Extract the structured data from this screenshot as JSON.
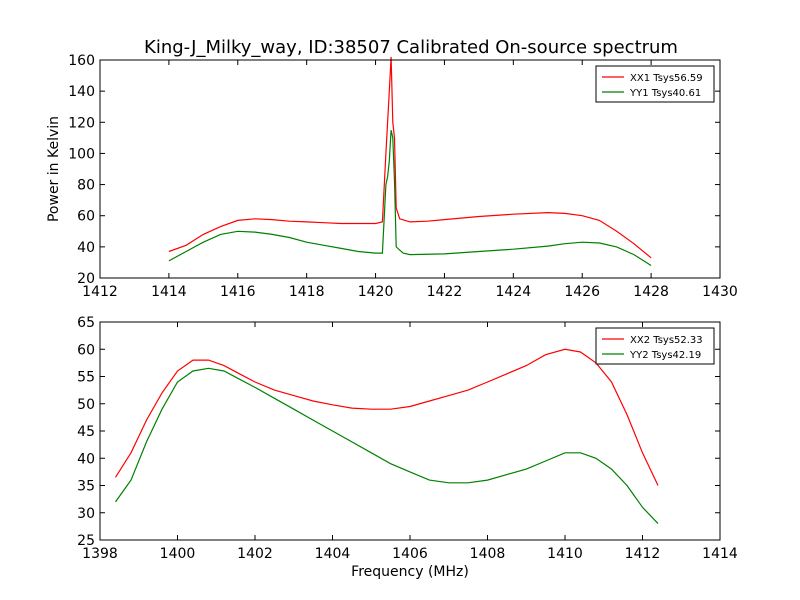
{
  "title": "King-J_Milky_way, ID:38507 Calibrated On-source spectrum",
  "chart_data": [
    {
      "type": "line",
      "ylabel": "Power in Kelvin",
      "xlabel": "",
      "xlim": [
        1412,
        1430
      ],
      "ylim": [
        20,
        160
      ],
      "xticks": [
        1412,
        1414,
        1416,
        1418,
        1420,
        1422,
        1424,
        1426,
        1428,
        1430
      ],
      "yticks": [
        20,
        40,
        60,
        80,
        100,
        120,
        140,
        160
      ],
      "legend_position": "top-right",
      "series": [
        {
          "name": "XX1 Tsys56.59",
          "color": "#ff0000",
          "points": [
            [
              1414,
              37
            ],
            [
              1414.5,
              41
            ],
            [
              1415,
              48
            ],
            [
              1415.5,
              53
            ],
            [
              1416,
              57
            ],
            [
              1416.5,
              58
            ],
            [
              1417,
              57.5
            ],
            [
              1417.5,
              56.5
            ],
            [
              1418,
              56
            ],
            [
              1418.5,
              55.5
            ],
            [
              1419,
              55
            ],
            [
              1419.5,
              55
            ],
            [
              1420,
              55
            ],
            [
              1420.2,
              56
            ],
            [
              1420.3,
              100
            ],
            [
              1420.35,
              120
            ],
            [
              1420.4,
              140
            ],
            [
              1420.45,
              162
            ],
            [
              1420.5,
              120
            ],
            [
              1420.55,
              110
            ],
            [
              1420.6,
              65
            ],
            [
              1420.7,
              58
            ],
            [
              1421,
              56
            ],
            [
              1421.5,
              56.5
            ],
            [
              1422,
              57.5
            ],
            [
              1423,
              59.5
            ],
            [
              1424,
              61
            ],
            [
              1425,
              62
            ],
            [
              1425.5,
              61.5
            ],
            [
              1426,
              60
            ],
            [
              1426.5,
              57
            ],
            [
              1427,
              50
            ],
            [
              1427.5,
              42
            ],
            [
              1428,
              33
            ]
          ]
        },
        {
          "name": "YY1 Tsys40.61",
          "color": "#008000",
          "points": [
            [
              1414,
              31
            ],
            [
              1414.5,
              37
            ],
            [
              1415,
              43
            ],
            [
              1415.5,
              48
            ],
            [
              1416,
              50
            ],
            [
              1416.5,
              49.5
            ],
            [
              1417,
              48
            ],
            [
              1417.5,
              46
            ],
            [
              1418,
              43
            ],
            [
              1418.5,
              41
            ],
            [
              1419,
              39
            ],
            [
              1419.5,
              37
            ],
            [
              1420,
              36
            ],
            [
              1420.2,
              36
            ],
            [
              1420.3,
              80
            ],
            [
              1420.35,
              85
            ],
            [
              1420.4,
              95
            ],
            [
              1420.45,
              115
            ],
            [
              1420.5,
              110
            ],
            [
              1420.55,
              82
            ],
            [
              1420.6,
              40
            ],
            [
              1420.8,
              36
            ],
            [
              1421,
              35
            ],
            [
              1422,
              35.5
            ],
            [
              1423,
              37
            ],
            [
              1424,
              38.5
            ],
            [
              1425,
              40.5
            ],
            [
              1425.5,
              42
            ],
            [
              1426,
              43
            ],
            [
              1426.5,
              42.5
            ],
            [
              1427,
              40
            ],
            [
              1427.5,
              35
            ],
            [
              1428,
              28
            ]
          ]
        }
      ]
    },
    {
      "type": "line",
      "ylabel": "",
      "xlabel": "Frequency (MHz)",
      "xlim": [
        1398,
        1414
      ],
      "ylim": [
        25,
        65
      ],
      "xticks": [
        1398,
        1400,
        1402,
        1404,
        1406,
        1408,
        1410,
        1412,
        1414
      ],
      "yticks": [
        25,
        30,
        35,
        40,
        45,
        50,
        55,
        60,
        65
      ],
      "legend_position": "top-right",
      "series": [
        {
          "name": "XX2 Tsys52.33",
          "color": "#ff0000",
          "points": [
            [
              1398.4,
              36.5
            ],
            [
              1398.8,
              41
            ],
            [
              1399.2,
              47
            ],
            [
              1399.6,
              52
            ],
            [
              1400,
              56
            ],
            [
              1400.4,
              58
            ],
            [
              1400.8,
              58
            ],
            [
              1401.2,
              57
            ],
            [
              1401.6,
              55.5
            ],
            [
              1402,
              54
            ],
            [
              1402.5,
              52.5
            ],
            [
              1403,
              51.5
            ],
            [
              1403.5,
              50.5
            ],
            [
              1404,
              49.8
            ],
            [
              1404.5,
              49.2
            ],
            [
              1405,
              49
            ],
            [
              1405.5,
              49
            ],
            [
              1406,
              49.5
            ],
            [
              1406.5,
              50.5
            ],
            [
              1407,
              51.5
            ],
            [
              1407.5,
              52.5
            ],
            [
              1408,
              54
            ],
            [
              1408.5,
              55.5
            ],
            [
              1409,
              57
            ],
            [
              1409.5,
              59
            ],
            [
              1410,
              60
            ],
            [
              1410.4,
              59.5
            ],
            [
              1410.8,
              57.5
            ],
            [
              1411.2,
              54
            ],
            [
              1411.6,
              48
            ],
            [
              1412,
              41
            ],
            [
              1412.4,
              35
            ]
          ]
        },
        {
          "name": "YY2 Tsys42.19",
          "color": "#008000",
          "points": [
            [
              1398.4,
              32
            ],
            [
              1398.8,
              36
            ],
            [
              1399.2,
              43
            ],
            [
              1399.6,
              49
            ],
            [
              1400,
              54
            ],
            [
              1400.4,
              56
            ],
            [
              1400.8,
              56.5
            ],
            [
              1401.2,
              56
            ],
            [
              1401.6,
              54.5
            ],
            [
              1402,
              53
            ],
            [
              1402.5,
              51
            ],
            [
              1403,
              49
            ],
            [
              1403.5,
              47
            ],
            [
              1404,
              45
            ],
            [
              1404.5,
              43
            ],
            [
              1405,
              41
            ],
            [
              1405.5,
              39
            ],
            [
              1406,
              37.5
            ],
            [
              1406.5,
              36
            ],
            [
              1407,
              35.5
            ],
            [
              1407.5,
              35.5
            ],
            [
              1408,
              36
            ],
            [
              1408.5,
              37
            ],
            [
              1409,
              38
            ],
            [
              1409.5,
              39.5
            ],
            [
              1410,
              41
            ],
            [
              1410.4,
              41
            ],
            [
              1410.8,
              40
            ],
            [
              1411.2,
              38
            ],
            [
              1411.6,
              35
            ],
            [
              1412,
              31
            ],
            [
              1412.4,
              28
            ]
          ]
        }
      ]
    }
  ]
}
